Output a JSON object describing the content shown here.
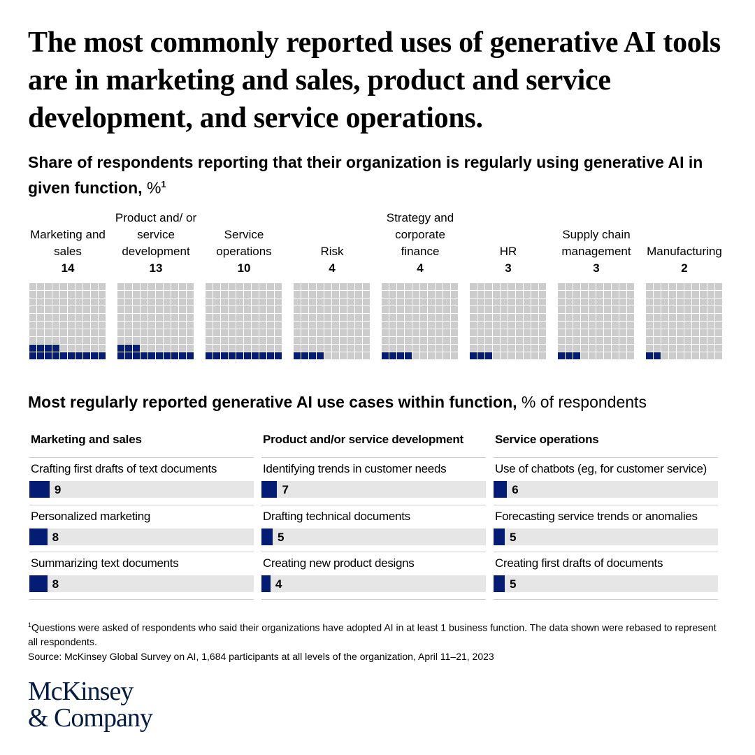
{
  "title": "The most commonly reported uses of generative AI tools are in marketing and sales, product and service development, and service operations.",
  "subtitle": "Share of respondents reporting that their organization is regularly using generative AI in given function,",
  "subtitle_unit": " %",
  "subtitle_note": "1",
  "colors": {
    "filled": "#051c75",
    "empty": "#cccccc",
    "track": "#e6e6e6"
  },
  "chart_data": [
    {
      "type": "waffle",
      "total": 100,
      "categories": [
        "Marketing and sales",
        "Product and/ or service development",
        "Service operations",
        "Risk",
        "Strategy and corporate finance",
        "HR",
        "Supply chain management",
        "Manufacturing"
      ],
      "values": [
        14,
        13,
        10,
        4,
        4,
        3,
        3,
        2
      ]
    },
    {
      "type": "bar",
      "orientation": "horizontal",
      "xlim": [
        0,
        100
      ],
      "groups": [
        {
          "name": "Marketing and sales",
          "categories": [
            "Crafting first drafts of text documents",
            "Personalized marketing",
            "Summarizing text documents"
          ],
          "values": [
            9,
            8,
            8
          ]
        },
        {
          "name": "Product and/or service development",
          "categories": [
            "Identifying trends in customer needs",
            "Drafting technical documents",
            "Creating new product designs"
          ],
          "values": [
            7,
            5,
            4
          ]
        },
        {
          "name": "Service operations",
          "categories": [
            "Use of chatbots (eg, for customer service)",
            "Forecasting service trends or anomalies",
            "Creating first drafts of documents"
          ],
          "values": [
            6,
            5,
            5
          ]
        }
      ]
    }
  ],
  "section2_title": "Most regularly reported generative AI use cases within function,",
  "section2_unit": " % of respondents",
  "footnote_marker": "1",
  "footnote": "Questions were asked of respondents who said their organizations have adopted AI in at least 1 business function. The data shown were rebased to represent all respondents.",
  "source": "Source: McKinsey Global Survey on AI, 1,684 participants at all levels of the organization, April 11–21, 2023",
  "logo": {
    "line1": "McKinsey",
    "line2": "& Company"
  }
}
